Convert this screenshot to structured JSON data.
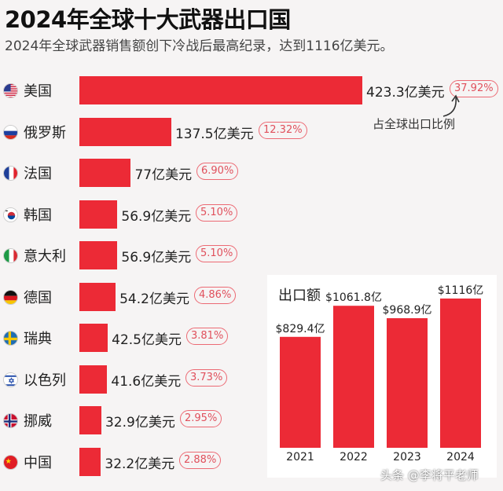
{
  "title": "2024年全球十大武器出口国",
  "subtitle": "2024年全球武器销售额创下冷战后最高纪录，达到1116亿美元。",
  "share_note": "占全球出口比例",
  "watermark": "头条 @李将平老师",
  "chart_data": [
    {
      "type": "bar",
      "orientation": "horizontal",
      "categories": [
        "美国",
        "俄罗斯",
        "法国",
        "韩国",
        "意大利",
        "德国",
        "瑞典",
        "以色列",
        "挪威",
        "中国"
      ],
      "values": [
        423.3,
        137.5,
        77,
        56.9,
        56.9,
        54.2,
        42.5,
        41.6,
        32.9,
        32.2
      ],
      "value_labels": [
        "423.3亿美元",
        "137.5亿美元",
        "77亿美元",
        "56.9亿美元",
        "56.9亿美元",
        "54.2亿美元",
        "42.5亿美元",
        "41.6亿美元",
        "32.9亿美元",
        "32.2亿美元"
      ],
      "shares": [
        "37.92%",
        "12.32%",
        "6.90%",
        "5.10%",
        "5.10%",
        "4.86%",
        "3.81%",
        "3.73%",
        "2.95%",
        "2.88%"
      ],
      "flags": [
        "us-flag",
        "ru-flag",
        "fr-flag",
        "kr-flag",
        "it-flag",
        "de-flag",
        "se-flag",
        "il-flag",
        "no-flag",
        "cn-flag"
      ],
      "bar_color": "#ec2a36"
    },
    {
      "type": "bar",
      "title": "出口额",
      "categories": [
        "2021",
        "2022",
        "2023",
        "2024"
      ],
      "values": [
        829.4,
        1061.8,
        968.9,
        1116
      ],
      "value_labels": [
        "$829.4亿",
        "$1061.8亿",
        "$968.9亿",
        "$1116亿"
      ],
      "bar_color": "#ec2a36"
    }
  ]
}
